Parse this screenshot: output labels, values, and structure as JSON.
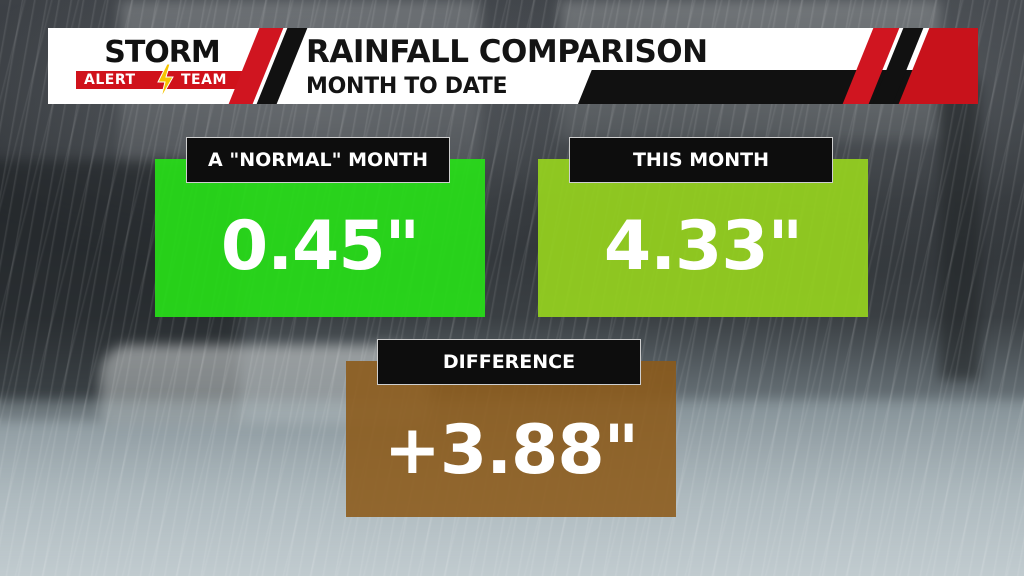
{
  "logo": {
    "top_word": "STORM",
    "alert_word": "ALERT",
    "team_word": "TEAM",
    "icon": "lightning-bolt-icon"
  },
  "header": {
    "title": "RAINFALL COMPARISON",
    "subtitle": "MONTH TO DATE"
  },
  "cards": {
    "normal": {
      "label": "A \"NORMAL\" MONTH",
      "value": "0.45\""
    },
    "this_month": {
      "label": "THIS MONTH",
      "value": "4.33\""
    },
    "difference": {
      "label": "DIFFERENCE",
      "value": "+3.88\""
    }
  },
  "colors": {
    "brand_red": "#d01520",
    "normal_card": "#27de18",
    "this_month_card": "#96d21e",
    "difference_card": "#8c5a19",
    "label_bg": "#0d0d0d"
  }
}
